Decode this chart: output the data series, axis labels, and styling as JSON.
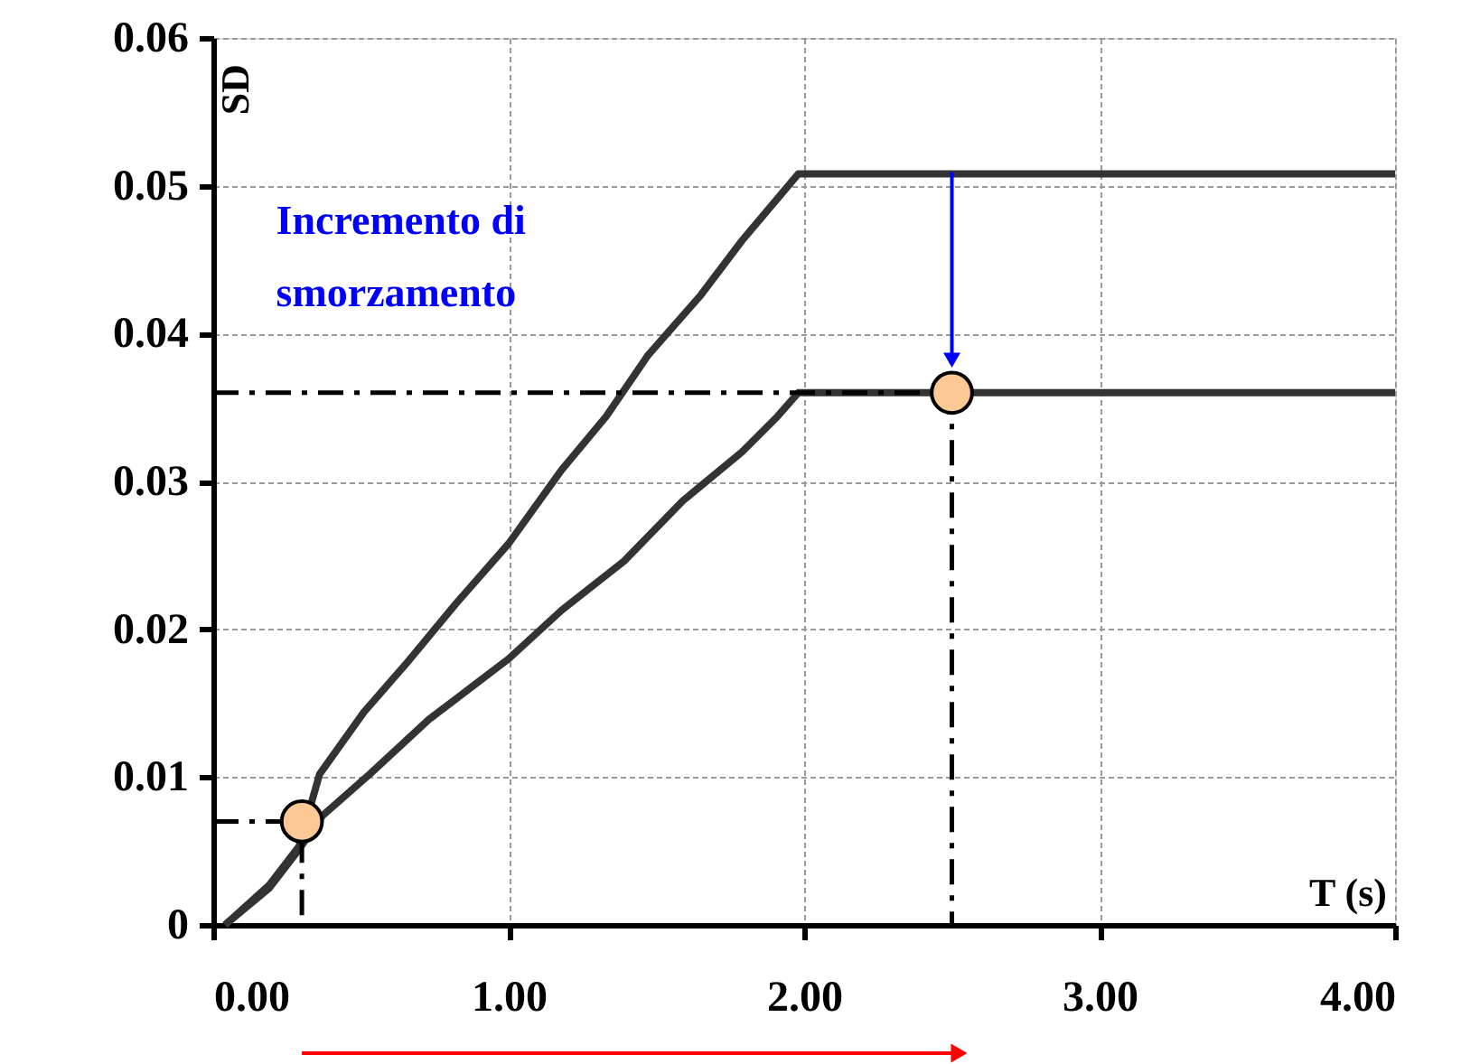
{
  "chart_data": {
    "type": "line",
    "xlabel": "T (s)",
    "ylabel": "SD",
    "xlim": [
      0,
      4
    ],
    "ylim": [
      0,
      0.06
    ],
    "xticks": [
      {
        "value": 0,
        "label": "0.00"
      },
      {
        "value": 1,
        "label": "1.00"
      },
      {
        "value": 2,
        "label": "2.00"
      },
      {
        "value": 3,
        "label": "3.00"
      },
      {
        "value": 4,
        "label": "4.00"
      }
    ],
    "yticks": [
      0,
      0.01,
      0.02,
      0.03,
      0.04,
      0.05,
      0.06
    ],
    "grid": true,
    "series": [
      {
        "color": "#333333",
        "x": [
          0.04,
          0.19,
          0.29,
          0.36,
          0.51,
          0.65,
          0.82,
          1.0,
          1.18,
          1.33,
          1.47,
          1.65,
          1.79,
          1.98,
          4.0
        ],
        "values": [
          0,
          0.0027,
          0.0053,
          0.0102,
          0.0144,
          0.0176,
          0.0217,
          0.0258,
          0.0308,
          0.0344,
          0.0385,
          0.0426,
          0.0463,
          0.0508,
          0.0508
        ]
      },
      {
        "color": "#333333",
        "x": [
          0.04,
          0.19,
          0.29,
          0.37,
          0.53,
          0.73,
          1.0,
          1.18,
          1.39,
          1.59,
          1.79,
          1.91,
          1.98,
          4.0
        ],
        "values": [
          0,
          0.0025,
          0.0051,
          0.0074,
          0.0102,
          0.0139,
          0.018,
          0.0213,
          0.0246,
          0.0287,
          0.032,
          0.0344,
          0.036,
          0.036
        ]
      },
      {
        "color": "#000000",
        "line_style": "dashed",
        "x": [
          0,
          0.3,
          0.3
        ],
        "values": [
          0.007,
          0.007,
          0
        ]
      },
      {
        "color": "#000000",
        "line_style": "dashed",
        "x": [
          0,
          2.5,
          2.5
        ],
        "values": [
          0.036,
          0.036,
          0
        ]
      },
      {
        "type": "scatter",
        "color": "#fcc895",
        "marker": "circle",
        "x": [
          0.3,
          2.5
        ],
        "values": [
          0.007,
          0.036
        ]
      }
    ],
    "annotations": [
      "Incremento di smorzamento"
    ]
  }
}
